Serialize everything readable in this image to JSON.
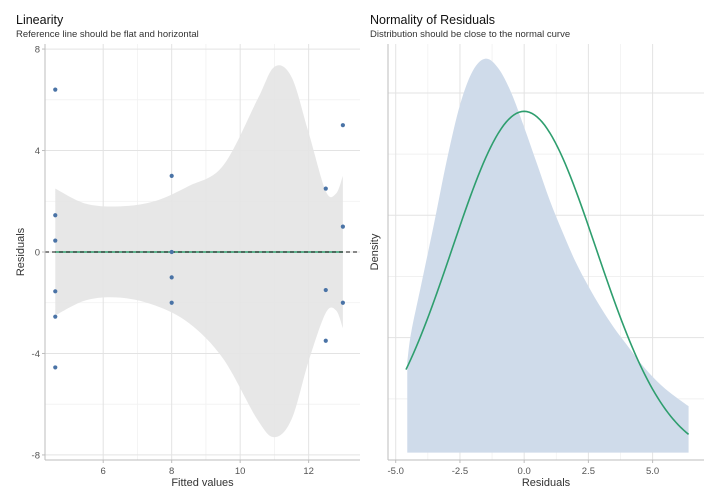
{
  "chart_data": [
    {
      "type": "scatter",
      "title": "Linearity",
      "subtitle": "Reference line should be flat and horizontal",
      "xlabel": "Fitted values",
      "ylabel": "Residuals",
      "xlim": [
        4.3,
        13.5
      ],
      "ylim": [
        -8.2,
        8.2
      ],
      "xticks": [
        6,
        8,
        10,
        12
      ],
      "yticks": [
        -8,
        -4,
        0,
        4,
        8
      ],
      "grid": true,
      "reference_line": 0,
      "points": [
        {
          "x": 4.6,
          "y": 6.4
        },
        {
          "x": 4.6,
          "y": 1.45
        },
        {
          "x": 4.6,
          "y": 0.45
        },
        {
          "x": 4.6,
          "y": -1.55
        },
        {
          "x": 4.6,
          "y": -2.55
        },
        {
          "x": 4.6,
          "y": -4.55
        },
        {
          "x": 8.0,
          "y": 3.0
        },
        {
          "x": 8.0,
          "y": 0.0
        },
        {
          "x": 8.0,
          "y": -1.0
        },
        {
          "x": 8.0,
          "y": -2.0
        },
        {
          "x": 12.5,
          "y": 2.5
        },
        {
          "x": 12.5,
          "y": -1.5
        },
        {
          "x": 12.5,
          "y": -3.5
        },
        {
          "x": 13.0,
          "y": 5.0
        },
        {
          "x": 13.0,
          "y": 1.0
        },
        {
          "x": 13.0,
          "y": -2.0
        }
      ],
      "fitted_line": [
        {
          "x": 4.6,
          "y": 0.0
        },
        {
          "x": 13.0,
          "y": 0.0
        }
      ],
      "confidence_band": {
        "x": [
          4.6,
          5.5,
          6.5,
          7.5,
          8.5,
          9.5,
          10.5,
          11.0,
          11.5,
          12.0,
          12.5,
          12.8,
          13.0
        ],
        "upper": [
          2.5,
          1.9,
          1.8,
          2.0,
          2.6,
          3.4,
          6.0,
          7.3,
          6.9,
          4.7,
          2.4,
          2.3,
          3.0
        ],
        "lower": [
          -2.5,
          -1.9,
          -1.8,
          -2.1,
          -2.8,
          -4.2,
          -6.6,
          -7.3,
          -6.6,
          -4.3,
          -2.4,
          -2.3,
          -3.0
        ]
      },
      "colors": {
        "points": "#4a73a6",
        "band": "#e4e4e4",
        "line": "#2e9e6e"
      }
    },
    {
      "type": "area",
      "title": "Normality of Residuals",
      "subtitle": "Distribution should be close to the normal curve",
      "xlabel": "Residuals",
      "ylabel": "Density",
      "xlim": [
        -5.3,
        7.0
      ],
      "xticks": [
        -5.0,
        -2.5,
        0.0,
        2.5,
        5.0
      ],
      "xtick_labels": [
        "-5.0",
        "-2.5",
        "0.0",
        "2.5",
        "5.0"
      ],
      "grid": true,
      "density_estimate": {
        "x": [
          -4.55,
          -4.4,
          -4.0,
          -3.5,
          -3.0,
          -2.5,
          -2.0,
          -1.5,
          -1.0,
          -0.5,
          0.0,
          0.5,
          1.0,
          1.5,
          2.0,
          2.5,
          3.0,
          3.5,
          4.0,
          4.5,
          5.0,
          5.5,
          6.0,
          6.4
        ],
        "y": [
          0.04,
          0.052,
          0.072,
          0.097,
          0.123,
          0.145,
          0.159,
          0.164,
          0.16,
          0.15,
          0.136,
          0.121,
          0.106,
          0.093,
          0.081,
          0.071,
          0.062,
          0.054,
          0.047,
          0.04,
          0.034,
          0.029,
          0.025,
          0.022
        ]
      },
      "normal_curve": {
        "mean": 0,
        "sd": 2.8
      },
      "ylim": [
        0,
        0.17
      ],
      "colors": {
        "density_fill": "#cfdbea",
        "normal_curve": "#2e9e6e"
      }
    }
  ]
}
